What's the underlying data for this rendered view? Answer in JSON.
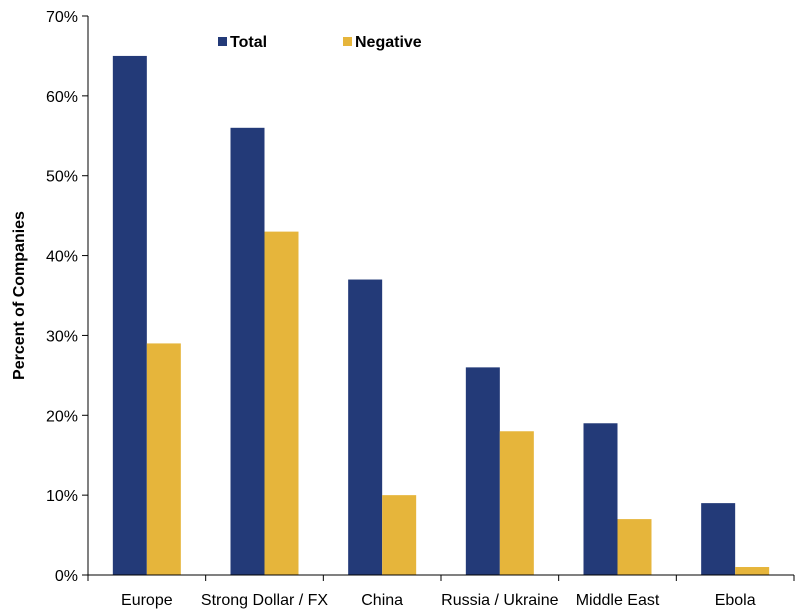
{
  "chart_data": {
    "type": "bar",
    "title": "",
    "xlabel": "",
    "ylabel": "Percent of Companies",
    "ylim": [
      0,
      70
    ],
    "yticks": [
      0,
      10,
      20,
      30,
      40,
      50,
      60,
      70
    ],
    "ytick_labels": [
      "0%",
      "10%",
      "20%",
      "30%",
      "40%",
      "50%",
      "60%",
      "70%"
    ],
    "categories": [
      "Europe",
      "Strong Dollar / FX",
      "China",
      "Russia / Ukraine",
      "Middle East",
      "Ebola"
    ],
    "series": [
      {
        "name": "Total",
        "color": "#233a78",
        "values": [
          65,
          56,
          37,
          26,
          19,
          9
        ]
      },
      {
        "name": "Negative",
        "color": "#e6b53b",
        "values": [
          29,
          43,
          10,
          18,
          7,
          1
        ]
      }
    ],
    "grid": false,
    "legend": "top-center"
  }
}
